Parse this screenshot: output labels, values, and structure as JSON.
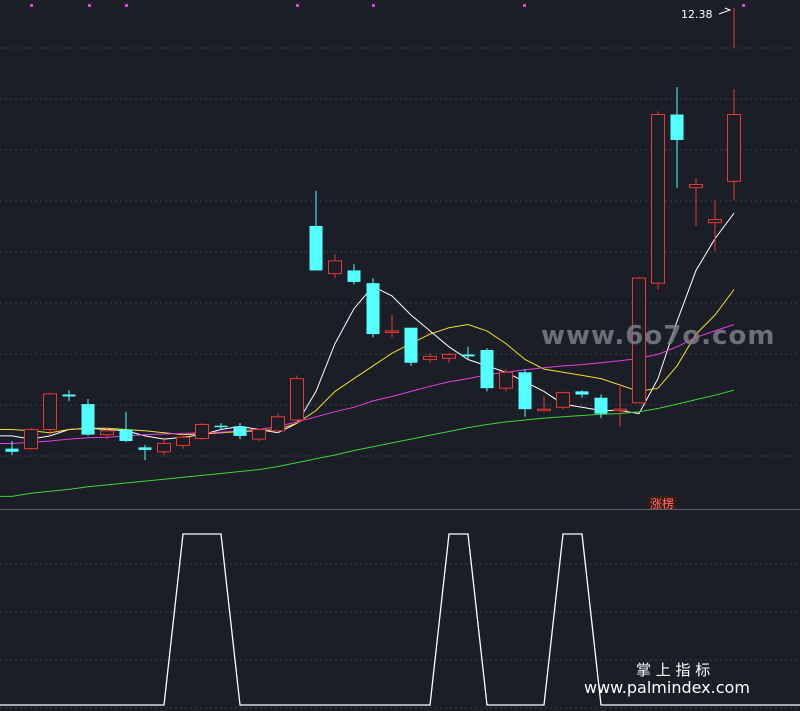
{
  "chart_data": [
    {
      "type": "candlestick",
      "title": "",
      "price_annotation": "12.38",
      "signal_badge": "涨楞",
      "ylim": [
        6.6,
        12.5
      ],
      "gridlines": true,
      "moving_averages": [
        {
          "color": "#ffffff",
          "values": [
            6.9,
            6.85,
            6.9,
            7.0,
            7.02,
            7.0,
            6.98,
            6.9,
            6.85,
            6.88,
            6.92,
            7.0,
            7.05,
            7.0,
            6.95,
            7.1,
            7.6,
            8.35,
            8.9,
            9.25,
            9.1,
            8.8,
            8.55,
            8.3,
            8.1,
            8.0,
            7.9,
            7.75,
            7.6,
            7.4,
            7.35,
            7.3,
            7.3,
            7.25,
            7.8,
            8.7,
            9.5,
            10.0,
            10.4
          ]
        },
        {
          "color": "#f0e020",
          "values": [
            7.0,
            6.98,
            6.95,
            7.0,
            7.02,
            7.02,
            7.0,
            6.98,
            6.95,
            6.92,
            6.93,
            6.95,
            6.97,
            6.98,
            7.0,
            7.1,
            7.3,
            7.6,
            7.8,
            8.0,
            8.2,
            8.35,
            8.5,
            8.6,
            8.65,
            8.55,
            8.35,
            8.1,
            7.95,
            7.9,
            7.85,
            7.8,
            7.7,
            7.6,
            7.65,
            8.0,
            8.5,
            8.8,
            9.2
          ]
        },
        {
          "color": "#e040e0",
          "values": [
            6.78,
            6.8,
            6.82,
            6.85,
            6.87,
            6.88,
            6.9,
            6.92,
            6.93,
            6.94,
            6.95,
            6.96,
            6.98,
            7.0,
            7.05,
            7.12,
            7.2,
            7.28,
            7.35,
            7.45,
            7.52,
            7.6,
            7.68,
            7.75,
            7.8,
            7.86,
            7.9,
            7.94,
            7.97,
            8.0,
            8.02,
            8.05,
            8.08,
            8.12,
            8.18,
            8.3,
            8.45,
            8.55,
            8.65
          ]
        },
        {
          "color": "#40d040",
          "values": [
            5.95,
            6.0,
            6.03,
            6.06,
            6.1,
            6.13,
            6.16,
            6.19,
            6.22,
            6.25,
            6.28,
            6.31,
            6.34,
            6.37,
            6.42,
            6.48,
            6.54,
            6.6,
            6.67,
            6.73,
            6.79,
            6.85,
            6.91,
            6.97,
            7.03,
            7.08,
            7.12,
            7.15,
            7.18,
            7.2,
            7.22,
            7.24,
            7.25,
            7.28,
            7.33,
            7.4,
            7.47,
            7.54,
            7.62
          ]
        }
      ],
      "candles": [
        {
          "o": 6.7,
          "h": 6.82,
          "l": 6.6,
          "c": 6.65
        },
        {
          "o": 6.7,
          "h": 7.02,
          "l": 6.68,
          "c": 7.0
        },
        {
          "o": 7.0,
          "h": 7.58,
          "l": 6.9,
          "c": 7.56
        },
        {
          "o": 7.55,
          "h": 7.62,
          "l": 7.45,
          "c": 7.52
        },
        {
          "o": 7.4,
          "h": 7.48,
          "l": 6.9,
          "c": 6.92
        },
        {
          "o": 6.92,
          "h": 7.02,
          "l": 6.85,
          "c": 6.98
        },
        {
          "o": 7.0,
          "h": 7.28,
          "l": 6.8,
          "c": 6.82
        },
        {
          "o": 6.72,
          "h": 6.76,
          "l": 6.52,
          "c": 6.68
        },
        {
          "o": 6.65,
          "h": 6.85,
          "l": 6.6,
          "c": 6.78
        },
        {
          "o": 6.75,
          "h": 6.95,
          "l": 6.7,
          "c": 6.88
        },
        {
          "o": 6.86,
          "h": 7.1,
          "l": 6.84,
          "c": 7.08
        },
        {
          "o": 7.06,
          "h": 7.1,
          "l": 7.0,
          "c": 7.05
        },
        {
          "o": 7.05,
          "h": 7.1,
          "l": 6.85,
          "c": 6.9
        },
        {
          "o": 6.85,
          "h": 7.0,
          "l": 6.82,
          "c": 7.0
        },
        {
          "o": 6.98,
          "h": 7.25,
          "l": 6.95,
          "c": 7.2
        },
        {
          "o": 7.15,
          "h": 7.85,
          "l": 7.1,
          "c": 7.8
        },
        {
          "o": 10.2,
          "h": 10.75,
          "l": 9.5,
          "c": 9.5
        },
        {
          "o": 9.45,
          "h": 9.75,
          "l": 9.38,
          "c": 9.65
        },
        {
          "o": 9.5,
          "h": 9.6,
          "l": 9.28,
          "c": 9.32
        },
        {
          "o": 9.3,
          "h": 9.38,
          "l": 8.45,
          "c": 8.5
        },
        {
          "o": 8.55,
          "h": 8.8,
          "l": 8.45,
          "c": 8.55
        },
        {
          "o": 8.6,
          "h": 8.6,
          "l": 8.0,
          "c": 8.05
        },
        {
          "o": 8.1,
          "h": 8.2,
          "l": 8.05,
          "c": 8.15
        },
        {
          "o": 8.12,
          "h": 8.2,
          "l": 8.05,
          "c": 8.18
        },
        {
          "o": 8.18,
          "h": 8.3,
          "l": 8.1,
          "c": 8.15
        },
        {
          "o": 8.25,
          "h": 8.28,
          "l": 7.6,
          "c": 7.65
        },
        {
          "o": 7.65,
          "h": 7.95,
          "l": 7.6,
          "c": 7.9
        },
        {
          "o": 7.9,
          "h": 7.95,
          "l": 7.2,
          "c": 7.32
        },
        {
          "o": 7.3,
          "h": 7.52,
          "l": 7.28,
          "c": 7.32
        },
        {
          "o": 7.35,
          "h": 7.6,
          "l": 7.32,
          "c": 7.58
        },
        {
          "o": 7.6,
          "h": 7.62,
          "l": 7.5,
          "c": 7.55
        },
        {
          "o": 7.5,
          "h": 7.55,
          "l": 7.18,
          "c": 7.25
        },
        {
          "o": 7.3,
          "h": 7.72,
          "l": 7.05,
          "c": 7.32
        },
        {
          "o": 7.42,
          "h": 9.4,
          "l": 7.42,
          "c": 9.38
        },
        {
          "o": 9.3,
          "h": 12.0,
          "l": 9.2,
          "c": 11.95
        },
        {
          "o": 11.95,
          "h": 12.38,
          "l": 10.8,
          "c": 11.55
        },
        {
          "o": 10.8,
          "h": 10.95,
          "l": 10.2,
          "c": 10.85
        },
        {
          "o": 10.25,
          "h": 10.6,
          "l": 9.8,
          "c": 10.3
        },
        {
          "o": 10.9,
          "h": 12.35,
          "l": 10.6,
          "c": 11.95
        }
      ]
    },
    {
      "type": "line",
      "title": "",
      "ylim": [
        0,
        1
      ],
      "series": [
        {
          "color": "#ffffff",
          "values": [
            0,
            0,
            0,
            0,
            0,
            0,
            0,
            0,
            0,
            1,
            1,
            1,
            0,
            0,
            0,
            0,
            0,
            0,
            0,
            0,
            0,
            0,
            0,
            1,
            1,
            0,
            0,
            0,
            0,
            1,
            1,
            0,
            0,
            0,
            0,
            0,
            0,
            0,
            0
          ]
        }
      ]
    }
  ],
  "watermarks": {
    "top": "www.6o7o.com",
    "bottom_title": "掌 上 指 标",
    "bottom_url": "www.palmindex.com"
  },
  "colors": {
    "background": "#1b1e26",
    "up": "#e83838",
    "down": "#54ffff",
    "grid": "#3a3e48",
    "divider": "#5a5e68"
  }
}
